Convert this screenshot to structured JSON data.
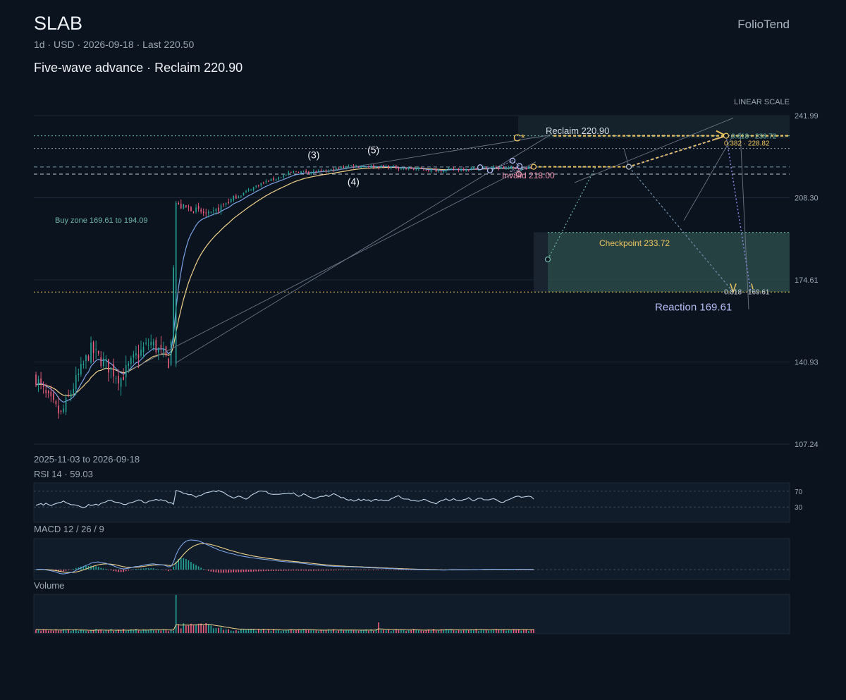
{
  "header": {
    "symbol": "SLAB",
    "subtitle": "1d · USD · 2026-09-18 · Last 220.50",
    "headline": "Five-wave advance · Reclaim 220.90",
    "brand": "FolioTend",
    "scale_mode": "LINEAR SCALE"
  },
  "footer": {
    "date_range": "2025-11-03 to 2026-09-18"
  },
  "colors": {
    "background": "#0b131e",
    "up": "#26a69a",
    "down": "#ef5f7e",
    "ma_fast": "#7aa2e3",
    "ma_slow": "#f0d28a",
    "gold": "#ecc45f",
    "teal": "#6fb7a8",
    "lavender": "#b5bdf5",
    "pink": "#f29ab5"
  },
  "chart_data": [
    {
      "type": "candlestick",
      "title": "SLAB",
      "ylim": [
        107.24,
        241.99
      ],
      "ytick_labels": [
        "241.99",
        "208.30",
        "174.61",
        "140.93",
        "107.24"
      ],
      "x_start": "2025-11-03",
      "x_end": "2026-09-18",
      "last": 220.5,
      "series": [
        {
          "name": "MA fast",
          "role": "ma_fast"
        },
        {
          "name": "MA slow",
          "role": "ma_slow"
        }
      ],
      "path_anchors": [
        {
          "t": 0,
          "p": 134.5
        },
        {
          "t": 0.02,
          "p": 127
        },
        {
          "t": 0.05,
          "p": 119
        },
        {
          "t": 0.08,
          "p": 133
        },
        {
          "t": 0.11,
          "p": 146
        },
        {
          "t": 0.14,
          "p": 140
        },
        {
          "t": 0.17,
          "p": 134
        },
        {
          "t": 0.2,
          "p": 143
        },
        {
          "t": 0.23,
          "p": 149
        },
        {
          "t": 0.25,
          "p": 145
        },
        {
          "t": 0.27,
          "p": 140
        },
        {
          "t": 0.28,
          "p": 205
        },
        {
          "t": 0.31,
          "p": 204
        },
        {
          "t": 0.35,
          "p": 201
        },
        {
          "t": 0.38,
          "p": 206
        },
        {
          "t": 0.45,
          "p": 214
        },
        {
          "t": 0.52,
          "p": 219
        },
        {
          "t": 0.58,
          "p": 219
        },
        {
          "t": 0.63,
          "p": 221.5
        },
        {
          "t": 0.7,
          "p": 221
        },
        {
          "t": 0.8,
          "p": 219.5
        },
        {
          "t": 0.9,
          "p": 220.5
        },
        {
          "t": 1,
          "p": 220.5
        }
      ],
      "wave_labels": [
        {
          "text": "(3)",
          "t": 0.56,
          "p": 224.5
        },
        {
          "text": "(5)",
          "t": 0.68,
          "p": 226.5
        },
        {
          "text": "(4)",
          "t": 0.64,
          "p": 213.5
        }
      ],
      "levels": [
        {
          "name": "Fib 0.618",
          "value": 233.72,
          "label": "0.618 · 233.72",
          "style": "gold-dotted"
        },
        {
          "name": "Reclaim",
          "value": 220.9,
          "label": "Reclaim 220.90"
        },
        {
          "name": "Fib 0.382",
          "value": 228.82,
          "label": "0.382 · 228.82"
        },
        {
          "name": "Invalid",
          "value": 218.0,
          "label": "Invalid 218.00"
        },
        {
          "name": "Fib 0.818",
          "value": 169.61,
          "label": "0.818 · 169.61"
        }
      ],
      "annotations": {
        "buy_zone": "Buy zone 169.61 to 194.09",
        "checkpoint": "Checkpoint 233.72",
        "reaction": "Reaction 169.61",
        "pivot_marker": "C*"
      }
    },
    {
      "type": "line",
      "title": "RSI 14 · 59.03",
      "ylim": [
        0,
        100
      ],
      "ytick_labels": [
        "70",
        "30"
      ],
      "last": 59.03
    },
    {
      "type": "line+bar",
      "title": "MACD 12 / 26 / 9",
      "series": [
        {
          "name": "MACD"
        },
        {
          "name": "Signal"
        },
        {
          "name": "Histogram"
        }
      ]
    },
    {
      "type": "bar",
      "title": "Volume"
    }
  ]
}
